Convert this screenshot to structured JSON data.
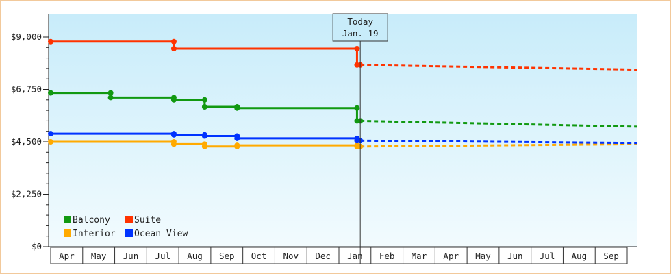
{
  "chart_data": {
    "type": "line",
    "title": "",
    "xlabel": "",
    "ylabel": "",
    "ylim": [
      0,
      10000
    ],
    "yticks": [
      {
        "value": 0,
        "label": "$0"
      },
      {
        "value": 2250,
        "label": "$2,250"
      },
      {
        "value": 4500,
        "label": "$4,500"
      },
      {
        "value": 6750,
        "label": "$6,750"
      },
      {
        "value": 9000,
        "label": "$9,000"
      }
    ],
    "months": [
      "Apr",
      "May",
      "Jun",
      "Jul",
      "Aug",
      "Sep",
      "Oct",
      "Nov",
      "Dec",
      "Jan",
      "Feb",
      "Mar",
      "Apr",
      "May",
      "Jun",
      "Jul",
      "Aug",
      "Sep"
    ],
    "xlim": [
      0,
      18.1
    ],
    "today": {
      "x": 9.55,
      "line1": "Today",
      "line2": "Jan. 19"
    },
    "legend_position": "bottom-left",
    "grid": false,
    "series": [
      {
        "name": "Balcony",
        "color": "#119911",
        "history": [
          [
            0,
            6600
          ],
          [
            1.85,
            6600
          ],
          [
            1.85,
            6400
          ],
          [
            3.8,
            6400
          ],
          [
            3.8,
            6300
          ],
          [
            4.75,
            6300
          ],
          [
            4.75,
            6000
          ],
          [
            5.75,
            6000
          ],
          [
            5.75,
            5950
          ],
          [
            9.45,
            5950
          ],
          [
            9.45,
            5400
          ],
          [
            9.55,
            5400
          ]
        ],
        "markers": [
          [
            0,
            6600
          ],
          [
            1.85,
            6600
          ],
          [
            1.85,
            6400
          ],
          [
            3.8,
            6400
          ],
          [
            3.8,
            6300
          ],
          [
            4.75,
            6300
          ],
          [
            4.75,
            6000
          ],
          [
            5.75,
            6000
          ],
          [
            5.75,
            5950
          ],
          [
            9.45,
            5950
          ],
          [
            9.45,
            5400
          ],
          [
            9.55,
            5400
          ]
        ],
        "forecast": [
          [
            9.55,
            5400
          ],
          [
            18.1,
            5150
          ]
        ]
      },
      {
        "name": "Suite",
        "color": "#ff3300",
        "history": [
          [
            0,
            8800
          ],
          [
            3.8,
            8800
          ],
          [
            3.8,
            8500
          ],
          [
            9.45,
            8500
          ],
          [
            9.45,
            7800
          ],
          [
            9.55,
            7800
          ]
        ],
        "markers": [
          [
            0,
            8800
          ],
          [
            3.8,
            8800
          ],
          [
            3.8,
            8500
          ],
          [
            9.45,
            8500
          ],
          [
            9.45,
            7800
          ],
          [
            9.55,
            7800
          ]
        ],
        "forecast": [
          [
            9.55,
            7800
          ],
          [
            18.1,
            7600
          ]
        ]
      },
      {
        "name": "Interior",
        "color": "#ffaa00",
        "history": [
          [
            0,
            4500
          ],
          [
            3.8,
            4500
          ],
          [
            3.8,
            4400
          ],
          [
            4.75,
            4400
          ],
          [
            4.75,
            4300
          ],
          [
            5.75,
            4300
          ],
          [
            5.75,
            4350
          ],
          [
            9.45,
            4350
          ],
          [
            9.45,
            4300
          ],
          [
            9.55,
            4300
          ]
        ],
        "markers": [
          [
            0,
            4500
          ],
          [
            3.8,
            4500
          ],
          [
            3.8,
            4400
          ],
          [
            4.75,
            4400
          ],
          [
            4.75,
            4300
          ],
          [
            5.75,
            4300
          ],
          [
            5.75,
            4350
          ],
          [
            9.45,
            4350
          ],
          [
            9.45,
            4300
          ],
          [
            9.55,
            4300
          ]
        ],
        "forecast": [
          [
            9.55,
            4300
          ],
          [
            18.1,
            4400
          ]
        ]
      },
      {
        "name": "Ocean View",
        "color": "#0033ff",
        "history": [
          [
            0,
            4850
          ],
          [
            3.8,
            4850
          ],
          [
            3.8,
            4800
          ],
          [
            4.75,
            4800
          ],
          [
            4.75,
            4750
          ],
          [
            5.75,
            4750
          ],
          [
            5.75,
            4650
          ],
          [
            9.45,
            4650
          ],
          [
            9.45,
            4550
          ],
          [
            9.55,
            4550
          ]
        ],
        "markers": [
          [
            0,
            4850
          ],
          [
            3.8,
            4850
          ],
          [
            3.8,
            4800
          ],
          [
            4.75,
            4800
          ],
          [
            4.75,
            4750
          ],
          [
            5.75,
            4750
          ],
          [
            5.75,
            4650
          ],
          [
            9.45,
            4650
          ],
          [
            9.45,
            4550
          ],
          [
            9.55,
            4550
          ]
        ],
        "forecast": [
          [
            9.55,
            4550
          ],
          [
            18.1,
            4450
          ]
        ]
      }
    ]
  }
}
